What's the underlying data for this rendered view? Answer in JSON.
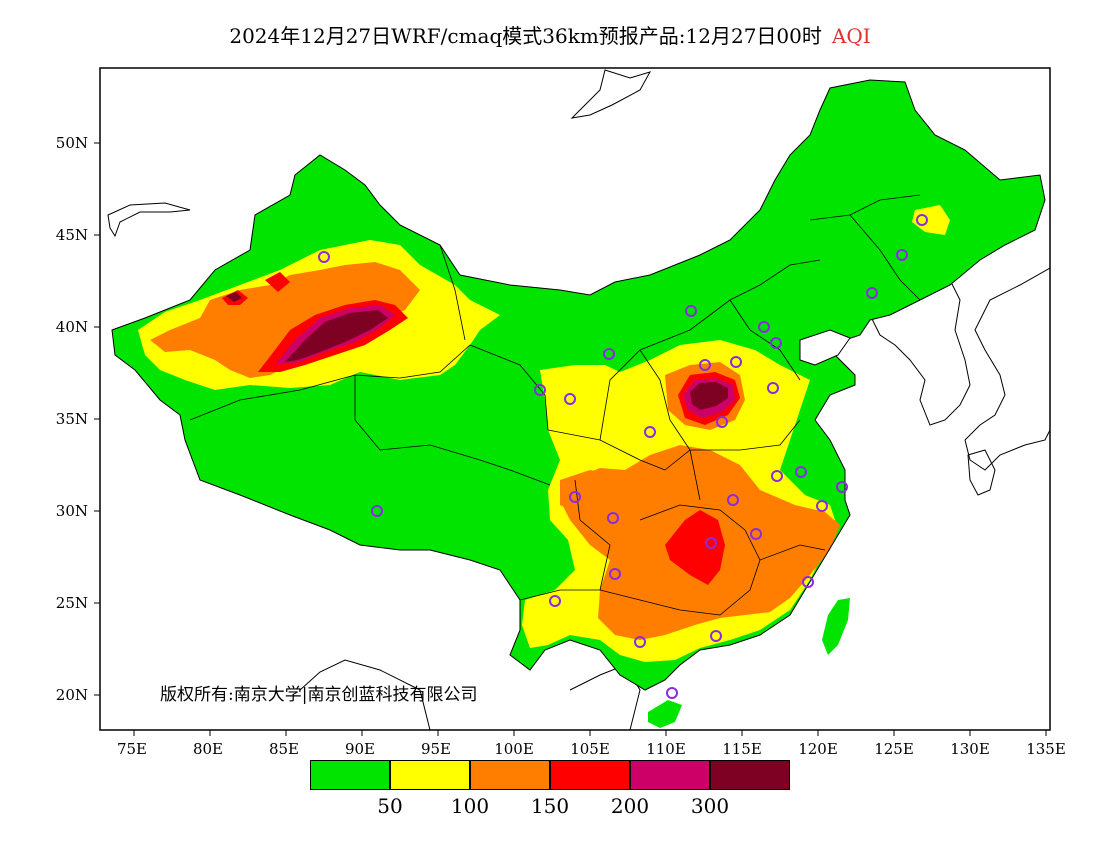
{
  "title": {
    "main": "2024年12月27日WRF/cmaq模式36km预报产品:12月27日00时",
    "variable": "AQI"
  },
  "axes": {
    "x_ticks": [
      "75E",
      "80E",
      "85E",
      "90E",
      "95E",
      "100E",
      "105E",
      "110E",
      "115E",
      "120E",
      "125E",
      "130E",
      "135E"
    ],
    "y_ticks": [
      "50N",
      "45N",
      "40N",
      "35N",
      "30N",
      "25N",
      "20N"
    ]
  },
  "copyright": "版权所有:南京大学|南京创蓝科技有限公司",
  "legend": {
    "colors": [
      "#00e400",
      "#ffff00",
      "#ff7e00",
      "#ff0000",
      "#cc0066",
      "#7e0023"
    ],
    "labels": [
      "50",
      "100",
      "150",
      "200",
      "300"
    ]
  },
  "colors": {
    "good": "#00e400",
    "moderate": "#ffff00",
    "usg": "#ff7e00",
    "unhealthy": "#ff0000",
    "very_unhealthy": "#cc0066",
    "hazardous": "#7e0023",
    "station_marker": "#8a2be2"
  }
}
